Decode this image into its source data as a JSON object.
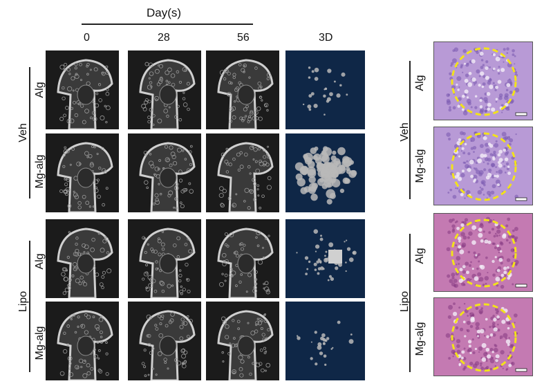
{
  "header": {
    "group_title": "Day(s)",
    "columns": [
      "0",
      "28",
      "56",
      "3D"
    ]
  },
  "groups": [
    {
      "label": "Veh",
      "rows": [
        "Alg",
        "Mg-alg"
      ]
    },
    {
      "label": "Lipo",
      "rows": [
        "Alg",
        "Mg-alg"
      ]
    }
  ],
  "histology": {
    "groups": [
      {
        "label": "Veh",
        "rows": [
          "Alg",
          "Mg-alg"
        ]
      },
      {
        "label": "Lipo",
        "rows": [
          "Alg",
          "Mg-alg"
        ]
      }
    ]
  },
  "colors": {
    "ct_background": "#1b1b1b",
    "render_background": "#0f2747",
    "histology_veh": "#b89ad6",
    "histology_lipo": "#c47ab2",
    "defect_outline": "#f2e21b"
  }
}
